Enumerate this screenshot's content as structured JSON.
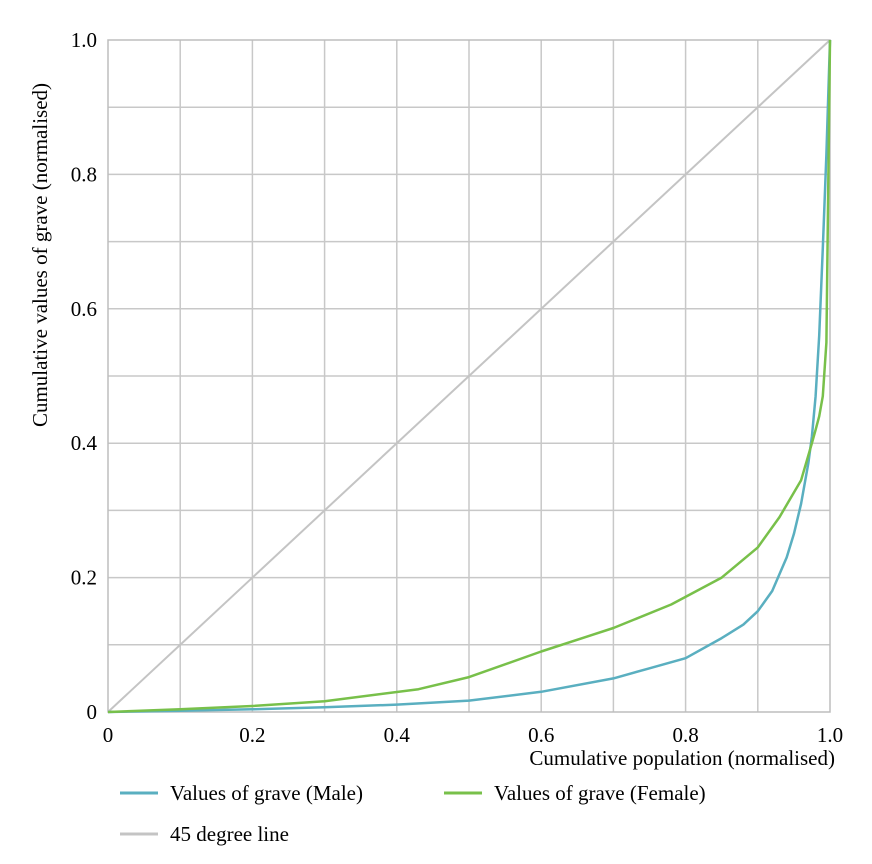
{
  "chart_data": {
    "type": "line",
    "xlabel": "Cumulative population (normalised)",
    "ylabel": "Cumulative values of grave (normalised)",
    "xlim": [
      0,
      1
    ],
    "ylim": [
      0,
      1
    ],
    "grid": true,
    "legend_position": "bottom",
    "x_ticks": [
      {
        "value": 0,
        "label": "0"
      },
      {
        "value": 0.2,
        "label": "0.2"
      },
      {
        "value": 0.4,
        "label": "0.4"
      },
      {
        "value": 0.6,
        "label": "0.6"
      },
      {
        "value": 0.8,
        "label": "0.8"
      },
      {
        "value": 1.0,
        "label": "1.0"
      }
    ],
    "y_ticks": [
      {
        "value": 0,
        "label": "0"
      },
      {
        "value": 0.2,
        "label": "0.2"
      },
      {
        "value": 0.4,
        "label": "0.4"
      },
      {
        "value": 0.6,
        "label": "0.6"
      },
      {
        "value": 0.8,
        "label": "0.8"
      },
      {
        "value": 1.0,
        "label": "1.0"
      }
    ],
    "series": [
      {
        "name": "Values of grave (Male)",
        "color": "#5aafc0",
        "x": [
          0,
          0.1,
          0.2,
          0.3,
          0.4,
          0.5,
          0.6,
          0.7,
          0.75,
          0.8,
          0.85,
          0.88,
          0.9,
          0.92,
          0.94,
          0.95,
          0.96,
          0.97,
          0.975,
          0.98,
          0.985,
          0.99,
          0.995,
          1.0
        ],
        "y": [
          0,
          0.002,
          0.004,
          0.007,
          0.011,
          0.017,
          0.03,
          0.05,
          0.065,
          0.08,
          0.11,
          0.13,
          0.15,
          0.18,
          0.23,
          0.265,
          0.31,
          0.37,
          0.41,
          0.47,
          0.56,
          0.69,
          0.83,
          1.0
        ]
      },
      {
        "name": "Values of grave (Female)",
        "color": "#78c04a",
        "x": [
          0,
          0.1,
          0.2,
          0.3,
          0.43,
          0.5,
          0.6,
          0.7,
          0.78,
          0.85,
          0.9,
          0.93,
          0.96,
          0.975,
          0.98,
          0.985,
          0.99,
          0.995,
          1.0
        ],
        "y": [
          0,
          0.004,
          0.009,
          0.016,
          0.034,
          0.052,
          0.09,
          0.125,
          0.16,
          0.2,
          0.245,
          0.29,
          0.345,
          0.4,
          0.42,
          0.44,
          0.47,
          0.55,
          1.0
        ]
      },
      {
        "name": "45 degree line",
        "color": "#c4c4c4",
        "x": [
          0,
          1
        ],
        "y": [
          0,
          1
        ]
      }
    ]
  }
}
